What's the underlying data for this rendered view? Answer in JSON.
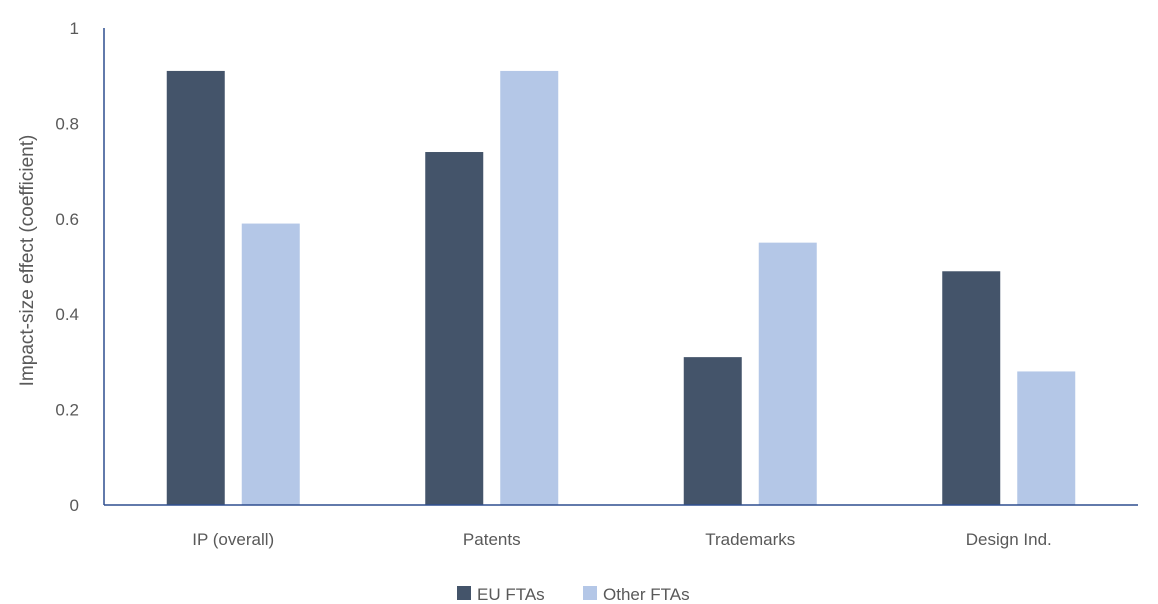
{
  "chart_data": {
    "type": "bar",
    "title": "",
    "xlabel": "",
    "ylabel": "Impact-size effect (coefficient)",
    "ylim": [
      0,
      1
    ],
    "yticks": [
      0,
      0.2,
      0.4,
      0.6,
      0.8,
      1
    ],
    "ytick_labels": [
      "0",
      "0.2",
      "0.4",
      "0.6",
      "0.8",
      "1"
    ],
    "categories": [
      "IP (overall)",
      "Patents",
      "Trademarks",
      "Design Ind."
    ],
    "series": [
      {
        "name": "EU FTAs",
        "values": [
          0.91,
          0.74,
          0.31,
          0.49
        ],
        "color": "#44546a"
      },
      {
        "name": "Other FTAs",
        "values": [
          0.59,
          0.91,
          0.55,
          0.28
        ],
        "color": "#b4c7e7"
      }
    ],
    "grid": false,
    "legend_position": "bottom-center",
    "axis_color": "#2f4f8f"
  }
}
